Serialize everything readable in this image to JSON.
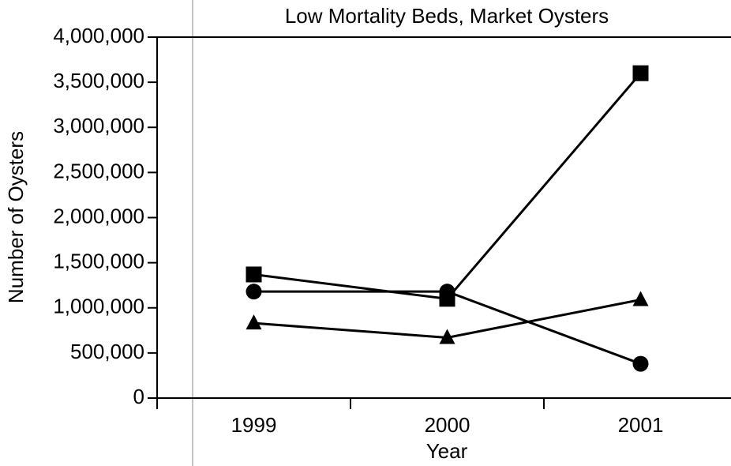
{
  "chart_data": {
    "type": "line",
    "title": "Low Mortality Beds, Market Oysters",
    "xlabel": "Year",
    "ylabel": "Number of Oysters",
    "categories": [
      "1999",
      "2000",
      "2001"
    ],
    "series": [
      {
        "color": "#000000",
        "marker": "square",
        "values": [
          1370000,
          1100000,
          3600000
        ]
      },
      {
        "color": "#000000",
        "marker": "circle",
        "values": [
          1180000,
          1180000,
          380000
        ]
      },
      {
        "color": "#000000",
        "marker": "triangle",
        "values": [
          830000,
          670000,
          1090000
        ]
      }
    ],
    "ylim": [
      0,
      4000000
    ],
    "yticks": [
      0,
      {
        "value": 500000,
        "label": "500,000"
      },
      {
        "value": 1000000,
        "label": "1,000,000"
      },
      {
        "value": 1500000,
        "label": "1,500,000"
      },
      {
        "value": 2000000,
        "label": "2,000,000"
      },
      {
        "value": 2500000,
        "label": "2,500,000"
      },
      {
        "value": 3000000,
        "label": "3,000,000"
      },
      {
        "value": 3500000,
        "label": "3,500,000"
      },
      {
        "value": 4000000,
        "label": "4,000,000"
      }
    ],
    "grid": false
  }
}
